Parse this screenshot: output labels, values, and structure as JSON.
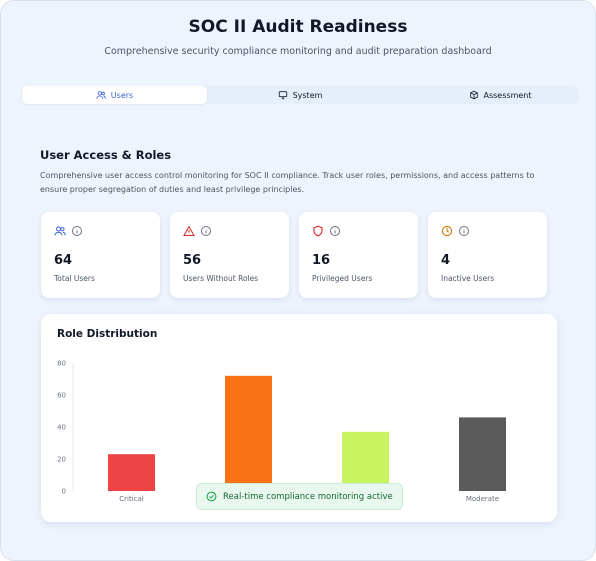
{
  "header": {
    "title": "SOC II Audit Readiness",
    "subtitle": "Comprehensive security compliance monitoring and audit preparation dashboard"
  },
  "tabs": [
    {
      "label": "Users",
      "icon": "users-icon",
      "active": true
    },
    {
      "label": "System",
      "icon": "monitor-icon",
      "active": false
    },
    {
      "label": "Assessment",
      "icon": "cube-icon",
      "active": false
    }
  ],
  "section": {
    "title": "User Access & Roles",
    "description": "Comprehensive user access control monitoring for SOC II compliance. Track user roles, permissions, and access patterns to ensure proper segregation of duties and least privilege principles."
  },
  "stats": [
    {
      "value": "64",
      "label": "Total Users",
      "icon": "users-icon",
      "color": "#3b63d8"
    },
    {
      "value": "56",
      "label": "Users Without Roles",
      "icon": "warning-icon",
      "color": "#dc2626"
    },
    {
      "value": "16",
      "label": "Privileged Users",
      "icon": "shield-icon",
      "color": "#dc2626"
    },
    {
      "value": "4",
      "label": "Inactive Users",
      "icon": "clock-icon",
      "color": "#d97706"
    }
  ],
  "chart": {
    "title": "Role Distribution"
  },
  "chart_data": {
    "type": "bar",
    "title": "Role Distribution",
    "categories": [
      "Critical",
      "",
      "",
      "Moderate"
    ],
    "values": [
      23,
      72,
      37,
      46
    ],
    "colors": [
      "#ef4444",
      "#f97316",
      "#c8f55f",
      "#5b5b5b"
    ],
    "ylim": [
      0,
      80
    ],
    "yticks": [
      0,
      20,
      40,
      60,
      80
    ],
    "grid": false
  },
  "toast": {
    "text": "Real-time compliance monitoring active",
    "icon": "check-circle-icon"
  }
}
